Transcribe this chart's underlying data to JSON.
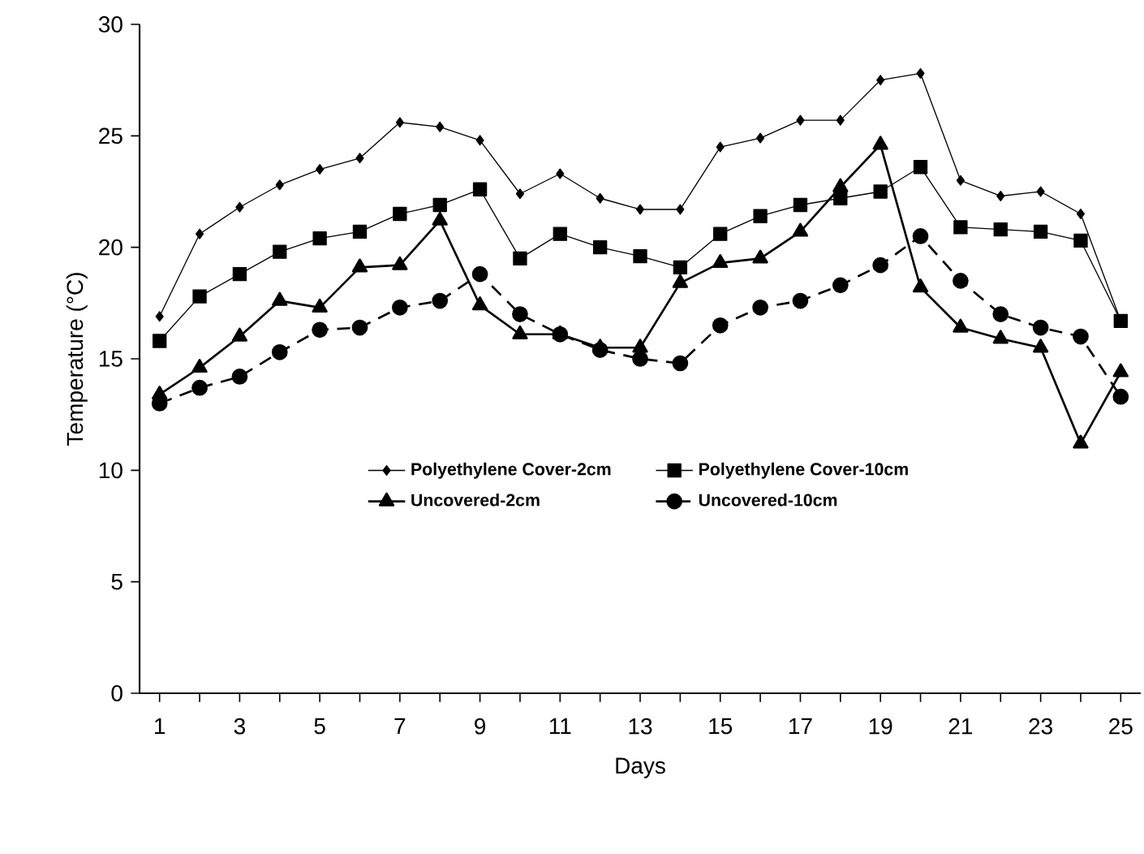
{
  "chart_data": {
    "type": "line",
    "xlabel": "Days",
    "ylabel": "Temperature (°C)",
    "x": [
      1,
      2,
      3,
      4,
      5,
      6,
      7,
      8,
      9,
      10,
      11,
      12,
      13,
      14,
      15,
      16,
      17,
      18,
      19,
      20,
      21,
      22,
      23,
      24,
      25
    ],
    "xlim": [
      0.5,
      25.5
    ],
    "xticks": [
      1,
      {
        "value": 2,
        "label": null
      },
      3,
      {
        "value": 4,
        "label": null
      },
      5,
      {
        "value": 6,
        "label": null
      },
      7,
      {
        "value": 8,
        "label": null
      },
      9,
      {
        "value": 10,
        "label": null
      },
      11,
      {
        "value": 12,
        "label": null
      },
      13,
      {
        "value": 14,
        "label": null
      },
      15,
      {
        "value": 16,
        "label": null
      },
      17,
      {
        "value": 18,
        "label": null
      },
      19,
      {
        "value": 20,
        "label": null
      },
      21,
      {
        "value": 22,
        "label": null
      },
      23,
      {
        "value": 24,
        "label": null
      },
      25
    ],
    "ylim": [
      0,
      30
    ],
    "yticks": [
      0,
      5,
      10,
      15,
      20,
      25,
      30
    ],
    "legend": "bottom",
    "series": [
      {
        "name": "Polyethylene Cover-2cm",
        "color": "#000000",
        "marker": "diamond",
        "line_style": "solid",
        "values": [
          16.9,
          20.6,
          21.8,
          22.8,
          23.5,
          24.0,
          25.6,
          25.4,
          24.8,
          22.4,
          23.3,
          22.2,
          21.7,
          21.7,
          24.5,
          24.9,
          25.7,
          25.7,
          27.5,
          27.8,
          23.0,
          22.3,
          22.5,
          21.5,
          16.7
        ]
      },
      {
        "name": "Polyethylene Cover-10cm",
        "color": "#000000",
        "marker": "square",
        "line_style": "solid",
        "values": [
          15.8,
          17.8,
          18.8,
          19.8,
          20.4,
          20.7,
          21.5,
          21.9,
          22.6,
          19.5,
          20.6,
          20.0,
          19.6,
          19.1,
          20.6,
          21.4,
          21.9,
          22.2,
          22.5,
          23.6,
          20.9,
          20.8,
          20.7,
          20.3,
          16.7
        ]
      },
      {
        "name": "Uncovered-2cm",
        "color": "#000000",
        "marker": "triangle",
        "line_style": "solid",
        "values": [
          13.4,
          14.6,
          16.0,
          17.6,
          17.3,
          19.1,
          19.2,
          21.2,
          17.4,
          16.1,
          16.1,
          15.5,
          15.5,
          18.4,
          19.3,
          19.5,
          20.7,
          22.7,
          24.6,
          18.2,
          16.4,
          15.9,
          15.5,
          11.2,
          14.4
        ]
      },
      {
        "name": "Uncovered-10cm",
        "color": "#000000",
        "marker": "circle",
        "line_style": "dashed",
        "values": [
          13.0,
          13.7,
          14.2,
          15.3,
          16.3,
          16.4,
          17.3,
          17.6,
          18.8,
          17.0,
          16.1,
          15.4,
          15.0,
          14.8,
          16.5,
          17.3,
          17.6,
          18.3,
          19.2,
          20.5,
          18.5,
          17.0,
          16.4,
          16.0,
          13.3
        ]
      }
    ]
  }
}
